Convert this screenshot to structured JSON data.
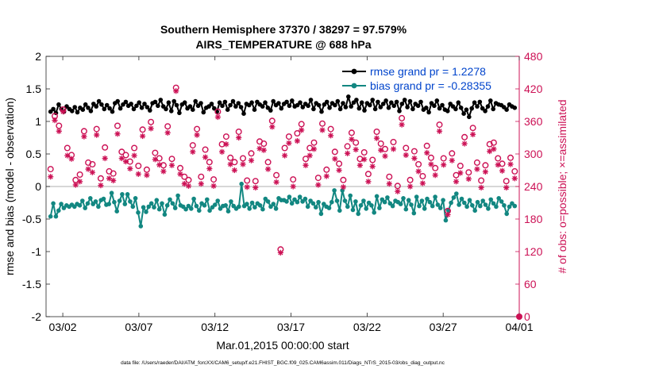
{
  "chart_data": {
    "type": "line",
    "title_line1": "Southern Hemisphere 37370 / 38297 = 97.579%",
    "title_line2": "AIRS_TEMPERATURE @ 688 hPa",
    "xlabel": "Mar.01,2015 00:00:00 start",
    "ylabel_left": "rmse and bias (model - observation)",
    "ylabel_right": "# of obs: o=possible; ×=assimilated",
    "footer": "data file: /Users/raeder/DAI/ATM_forcXX/CAM6_setup/f.e21.FHIST_BGC.f09_025.CAM6assim.011/Diags_NTrS_2015-03/obs_diag_output.nc",
    "x_ticks": [
      {
        "day": 2,
        "label": "03/02"
      },
      {
        "day": 7,
        "label": "03/07"
      },
      {
        "day": 12,
        "label": "03/12"
      },
      {
        "day": 17,
        "label": "03/17"
      },
      {
        "day": 22,
        "label": "03/22"
      },
      {
        "day": 27,
        "label": "03/27"
      },
      {
        "day": 32,
        "label": "04/01"
      }
    ],
    "xlim": [
      0.9,
      32.0
    ],
    "ylim_left": [
      -2,
      2
    ],
    "yticks_left": [
      "2",
      "1.5",
      "1",
      "0.5",
      "0",
      "-0.5",
      "-1",
      "-1.5",
      "-2"
    ],
    "ylim_right": [
      0,
      480
    ],
    "yticks_right": [
      "480",
      "420",
      "360",
      "300",
      "240",
      "180",
      "120",
      "60",
      "0"
    ],
    "legend_position": "top-right",
    "zero_line": true,
    "series": [
      {
        "name": "rmse grand pr = 1.2278",
        "axis": "left",
        "color": "#000000",
        "marker": "filled-circle",
        "values": [
          1.15,
          1.19,
          1.13,
          1.26,
          1.19,
          1.15,
          1.23,
          1.19,
          1.16,
          1.22,
          1.14,
          1.21,
          1.18,
          1.26,
          1.21,
          1.16,
          1.27,
          1.23,
          1.31,
          1.26,
          1.19,
          1.25,
          1.2,
          1.15,
          1.28,
          1.31,
          1.2,
          1.26,
          1.3,
          1.24,
          1.27,
          1.19,
          1.24,
          1.29,
          1.21,
          1.27,
          1.22,
          1.17,
          1.28,
          1.3,
          1.24,
          1.33,
          1.23,
          1.19,
          1.29,
          1.16,
          1.31,
          1.25,
          1.13,
          1.26,
          1.29,
          1.2,
          1.23,
          1.18,
          1.31,
          1.24,
          1.28,
          1.14,
          1.21,
          1.23,
          1.27,
          1.2,
          1.15,
          1.29,
          1.24,
          1.3,
          1.18,
          1.25,
          1.31,
          1.23,
          1.28,
          1.22,
          1.12,
          1.27,
          1.25,
          1.29,
          1.18,
          1.3,
          1.26,
          1.23,
          1.29,
          1.21,
          1.17,
          1.31,
          1.25,
          1.28,
          1.2,
          1.27,
          1.3,
          1.24,
          1.32,
          1.23,
          1.25,
          1.29,
          1.22,
          1.27,
          1.24,
          1.33,
          1.19,
          1.28,
          1.25,
          1.15,
          1.26,
          1.3,
          1.21,
          1.28,
          1.25,
          1.31,
          1.19,
          1.28,
          1.22,
          1.38,
          1.23,
          1.29,
          1.33,
          1.2,
          1.29,
          1.17,
          1.28,
          1.25,
          1.33,
          1.19,
          1.3,
          1.22,
          1.27,
          1.32,
          1.21,
          1.29,
          1.24,
          1.3,
          1.16,
          1.27,
          1.33,
          1.22,
          1.31,
          1.19,
          1.27,
          1.24,
          1.3,
          1.18,
          1.21,
          1.14,
          1.28,
          1.24,
          1.32,
          1.2,
          1.25,
          1.18,
          1.16,
          1.27,
          1.23,
          1.19,
          1.29,
          1.21,
          1.12,
          1.18,
          1.07,
          1.2,
          1.29,
          1.23,
          1.3,
          1.2,
          1.16,
          1.23,
          1.32,
          1.19,
          1.28,
          1.26,
          1.25,
          1.22,
          1.18,
          1.26,
          1.23,
          1.21
        ]
      },
      {
        "name": "bias grand pr = -0.28355",
        "axis": "left",
        "color": "#128781",
        "marker": "filled-circle",
        "values": [
          -0.46,
          -0.26,
          -0.46,
          -0.37,
          -0.27,
          -0.33,
          -0.29,
          -0.31,
          -0.28,
          -0.31,
          -0.27,
          -0.29,
          -0.22,
          -0.33,
          -0.26,
          -0.18,
          -0.27,
          -0.23,
          -0.31,
          -0.21,
          -0.19,
          -0.28,
          -0.27,
          -0.1,
          -0.24,
          -0.38,
          -0.22,
          -0.12,
          -0.27,
          -0.12,
          -0.23,
          -0.31,
          -0.18,
          -0.4,
          -0.61,
          -0.32,
          -0.39,
          -0.31,
          -0.26,
          -0.32,
          -0.21,
          -0.35,
          -0.26,
          -0.43,
          -0.29,
          -0.2,
          -0.26,
          -0.33,
          -0.14,
          -0.29,
          -0.31,
          -0.35,
          -0.3,
          -0.34,
          -0.19,
          -0.3,
          -0.37,
          -0.26,
          -0.29,
          -0.2,
          -0.37,
          -0.32,
          -0.28,
          -0.22,
          -0.34,
          -0.3,
          -0.29,
          -0.38,
          -0.23,
          -0.3,
          -0.34,
          -0.31,
          0.04,
          -0.3,
          -0.27,
          -0.34,
          -0.25,
          -0.32,
          -0.26,
          -0.29,
          -0.35,
          -0.19,
          -0.23,
          -0.31,
          -0.27,
          -0.34,
          -0.18,
          -0.21,
          -0.21,
          -0.23,
          -0.16,
          -0.26,
          -0.2,
          -0.24,
          -0.16,
          -0.23,
          -0.19,
          -0.31,
          -0.22,
          -0.26,
          -0.32,
          -0.24,
          -0.42,
          -0.27,
          -0.31,
          -0.33,
          -0.24,
          -0.06,
          -0.22,
          -0.37,
          -0.06,
          -0.22,
          -0.31,
          -0.14,
          -0.36,
          -0.23,
          -0.42,
          -0.29,
          -0.22,
          -0.34,
          -0.25,
          -0.29,
          -0.4,
          -0.15,
          -0.33,
          -0.2,
          -0.24,
          -0.17,
          -0.26,
          -0.3,
          -0.22,
          -0.24,
          -0.27,
          -0.18,
          -0.35,
          -0.21,
          -0.28,
          -0.41,
          -0.16,
          -0.3,
          -0.22,
          -0.34,
          -0.19,
          -0.24,
          -0.3,
          -0.16,
          -0.28,
          -0.33,
          -0.21,
          -0.52,
          -0.37,
          -0.25,
          -0.17,
          -0.11,
          -0.28,
          -0.19,
          -0.25,
          -0.31,
          -0.21,
          -0.29,
          -0.37,
          -0.24,
          -0.3,
          -0.22,
          -0.28,
          -0.34,
          -0.2,
          -0.26,
          -0.31,
          -0.18,
          -0.23,
          -0.29,
          -0.42,
          -0.31,
          -0.26,
          -0.3
        ]
      },
      {
        "name": "possible",
        "axis": "right",
        "color": "#cc1155",
        "marker": "open-circle",
        "values": [
          272,
          370,
          352,
          382,
          311,
          298,
          252,
          262,
          342,
          284,
          281,
          346,
          255,
          312,
          268,
          264,
          352,
          304,
          298,
          286,
          311,
          278,
          345,
          271,
          359,
          302,
          292,
          279,
          351,
          291,
          422,
          274,
          258,
          252,
          316,
          346,
          258,
          308,
          285,
          253,
          378,
          318,
          332,
          293,
          285,
          341,
          292,
          251,
          301,
          250,
          323,
          319,
          285,
          361,
          261,
          124,
          311,
          332,
          253,
          338,
          355,
          291,
          311,
          321,
          256,
          356,
          271,
          346,
          304,
          282,
          252,
          314,
          339,
          321,
          291,
          303,
          263,
          289,
          341,
          319,
          309,
          258,
          322,
          241,
          366,
          311,
          252,
          305,
          281,
          259,
          315,
          293,
          274,
          354,
          292,
          195,
          301,
          261,
          278,
          331,
          266,
          348,
          284,
          251,
          279,
          318,
          321,
          292,
          282,
          250,
          293,
          268
        ]
      },
      {
        "name": "assimilated",
        "axis": "right",
        "color": "#cc1155",
        "marker": "asterisk",
        "values": [
          258,
          362,
          342,
          378,
          297,
          291,
          243,
          249,
          332,
          272,
          266,
          335,
          242,
          292,
          255,
          251,
          337,
          292,
          286,
          273,
          297,
          263,
          333,
          261,
          347,
          290,
          280,
          268,
          339,
          279,
          416,
          263,
          245,
          241,
          304,
          335,
          245,
          294,
          273,
          241,
          368,
          304,
          318,
          281,
          270,
          330,
          281,
          239,
          288,
          238,
          310,
          307,
          272,
          350,
          248,
          118,
          297,
          320,
          240,
          324,
          344,
          279,
          297,
          309,
          243,
          344,
          259,
          334,
          291,
          270,
          239,
          301,
          327,
          308,
          279,
          290,
          249,
          277,
          329,
          307,
          296,
          245,
          309,
          231,
          354,
          298,
          240,
          292,
          268,
          246,
          302,
          281,
          261,
          342,
          280,
          188,
          288,
          249,
          265,
          319,
          254,
          336,
          272,
          238,
          267,
          305,
          309,
          280,
          269,
          238,
          281,
          255
        ]
      }
    ]
  }
}
